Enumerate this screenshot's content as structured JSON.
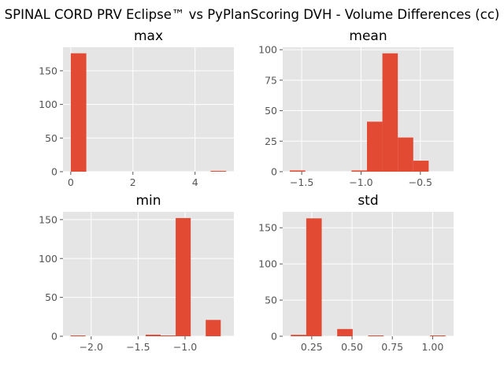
{
  "figure": {
    "suptitle": "SPINAL CORD PRV Eclipse™ vs PyPlanScoring DVH - Volume Differences (cc)"
  },
  "colors": {
    "bar": "#e24a33",
    "panel_background": "#e5e5e5",
    "grid": "#ffffff",
    "tick_text": "#555555"
  },
  "chart_data": [
    {
      "type": "bar",
      "title": "max",
      "xlabel": "",
      "ylabel": "",
      "grid": true,
      "xlim": [
        -0.25,
        5.25
      ],
      "ylim": [
        0,
        185
      ],
      "xticks": [
        0,
        2,
        4
      ],
      "xtick_labels": [
        "0",
        "2",
        "4"
      ],
      "yticks": [
        0,
        50,
        100,
        150
      ],
      "ytick_labels": [
        "0",
        "50",
        "100",
        "150"
      ],
      "bins": [
        {
          "x0": 0.0,
          "x1": 0.5,
          "count": 176
        },
        {
          "x0": 0.5,
          "x1": 1.0,
          "count": 0
        },
        {
          "x0": 1.0,
          "x1": 1.5,
          "count": 0
        },
        {
          "x0": 1.5,
          "x1": 2.0,
          "count": 0
        },
        {
          "x0": 2.0,
          "x1": 2.5,
          "count": 0
        },
        {
          "x0": 2.5,
          "x1": 3.0,
          "count": 0
        },
        {
          "x0": 3.0,
          "x1": 3.5,
          "count": 0
        },
        {
          "x0": 3.5,
          "x1": 4.0,
          "count": 0
        },
        {
          "x0": 4.0,
          "x1": 4.5,
          "count": 0
        },
        {
          "x0": 4.5,
          "x1": 5.0,
          "count": 1
        }
      ]
    },
    {
      "type": "bar",
      "title": "mean",
      "xlabel": "",
      "ylabel": "",
      "grid": true,
      "xlim": [
        -1.66,
        -0.22
      ],
      "ylim": [
        0,
        102
      ],
      "xticks": [
        -1.5,
        -1.0,
        -0.5
      ],
      "xtick_labels": [
        "−1.5",
        "−1.0",
        "−0.5"
      ],
      "yticks": [
        0,
        25,
        50,
        75,
        100
      ],
      "ytick_labels": [
        "0",
        "25",
        "50",
        "75",
        "100"
      ],
      "bins": [
        {
          "x0": -1.6,
          "x1": -1.47,
          "count": 1
        },
        {
          "x0": -1.47,
          "x1": -1.34,
          "count": 0
        },
        {
          "x0": -1.34,
          "x1": -1.21,
          "count": 0
        },
        {
          "x0": -1.21,
          "x1": -1.08,
          "count": 0
        },
        {
          "x0": -1.08,
          "x1": -0.95,
          "count": 1
        },
        {
          "x0": -0.95,
          "x1": -0.82,
          "count": 41
        },
        {
          "x0": -0.82,
          "x1": -0.69,
          "count": 97
        },
        {
          "x0": -0.69,
          "x1": -0.56,
          "count": 28
        },
        {
          "x0": -0.56,
          "x1": -0.43,
          "count": 9
        },
        {
          "x0": -0.43,
          "x1": -0.3,
          "count": 0
        }
      ]
    },
    {
      "type": "bar",
      "title": "min",
      "xlabel": "",
      "ylabel": "",
      "grid": true,
      "xlim": [
        -2.3,
        -0.48
      ],
      "ylim": [
        0,
        160
      ],
      "xticks": [
        -2.0,
        -1.5,
        -1.0
      ],
      "xtick_labels": [
        "−2.0",
        "−1.5",
        "−1.0"
      ],
      "yticks": [
        0,
        50,
        100,
        150
      ],
      "ytick_labels": [
        "0",
        "50",
        "100",
        "150"
      ],
      "bins": [
        {
          "x0": -2.22,
          "x1": -2.06,
          "count": 1
        },
        {
          "x0": -2.06,
          "x1": -1.9,
          "count": 0
        },
        {
          "x0": -1.9,
          "x1": -1.74,
          "count": 0
        },
        {
          "x0": -1.74,
          "x1": -1.58,
          "count": 0
        },
        {
          "x0": -1.58,
          "x1": -1.42,
          "count": 0
        },
        {
          "x0": -1.42,
          "x1": -1.26,
          "count": 2
        },
        {
          "x0": -1.26,
          "x1": -1.1,
          "count": 1
        },
        {
          "x0": -1.1,
          "x1": -0.94,
          "count": 152
        },
        {
          "x0": -0.94,
          "x1": -0.78,
          "count": 0
        },
        {
          "x0": -0.78,
          "x1": -0.62,
          "count": 21
        }
      ]
    },
    {
      "type": "bar",
      "title": "std",
      "xlabel": "",
      "ylabel": "",
      "grid": true,
      "xlim": [
        0.07,
        1.13
      ],
      "ylim": [
        0,
        172
      ],
      "xticks": [
        0.25,
        0.5,
        0.75,
        1.0
      ],
      "xtick_labels": [
        "0.25",
        "0.50",
        "0.75",
        "1.00"
      ],
      "yticks": [
        0,
        50,
        100,
        150
      ],
      "ytick_labels": [
        "0",
        "50",
        "100",
        "150"
      ],
      "bins": [
        {
          "x0": 0.12,
          "x1": 0.216,
          "count": 2
        },
        {
          "x0": 0.216,
          "x1": 0.312,
          "count": 163
        },
        {
          "x0": 0.312,
          "x1": 0.408,
          "count": 0
        },
        {
          "x0": 0.408,
          "x1": 0.504,
          "count": 10
        },
        {
          "x0": 0.504,
          "x1": 0.6,
          "count": 0
        },
        {
          "x0": 0.6,
          "x1": 0.696,
          "count": 1
        },
        {
          "x0": 0.696,
          "x1": 0.792,
          "count": 0
        },
        {
          "x0": 0.792,
          "x1": 0.888,
          "count": 0
        },
        {
          "x0": 0.888,
          "x1": 0.984,
          "count": 0
        },
        {
          "x0": 0.984,
          "x1": 1.08,
          "count": 1
        }
      ]
    }
  ]
}
